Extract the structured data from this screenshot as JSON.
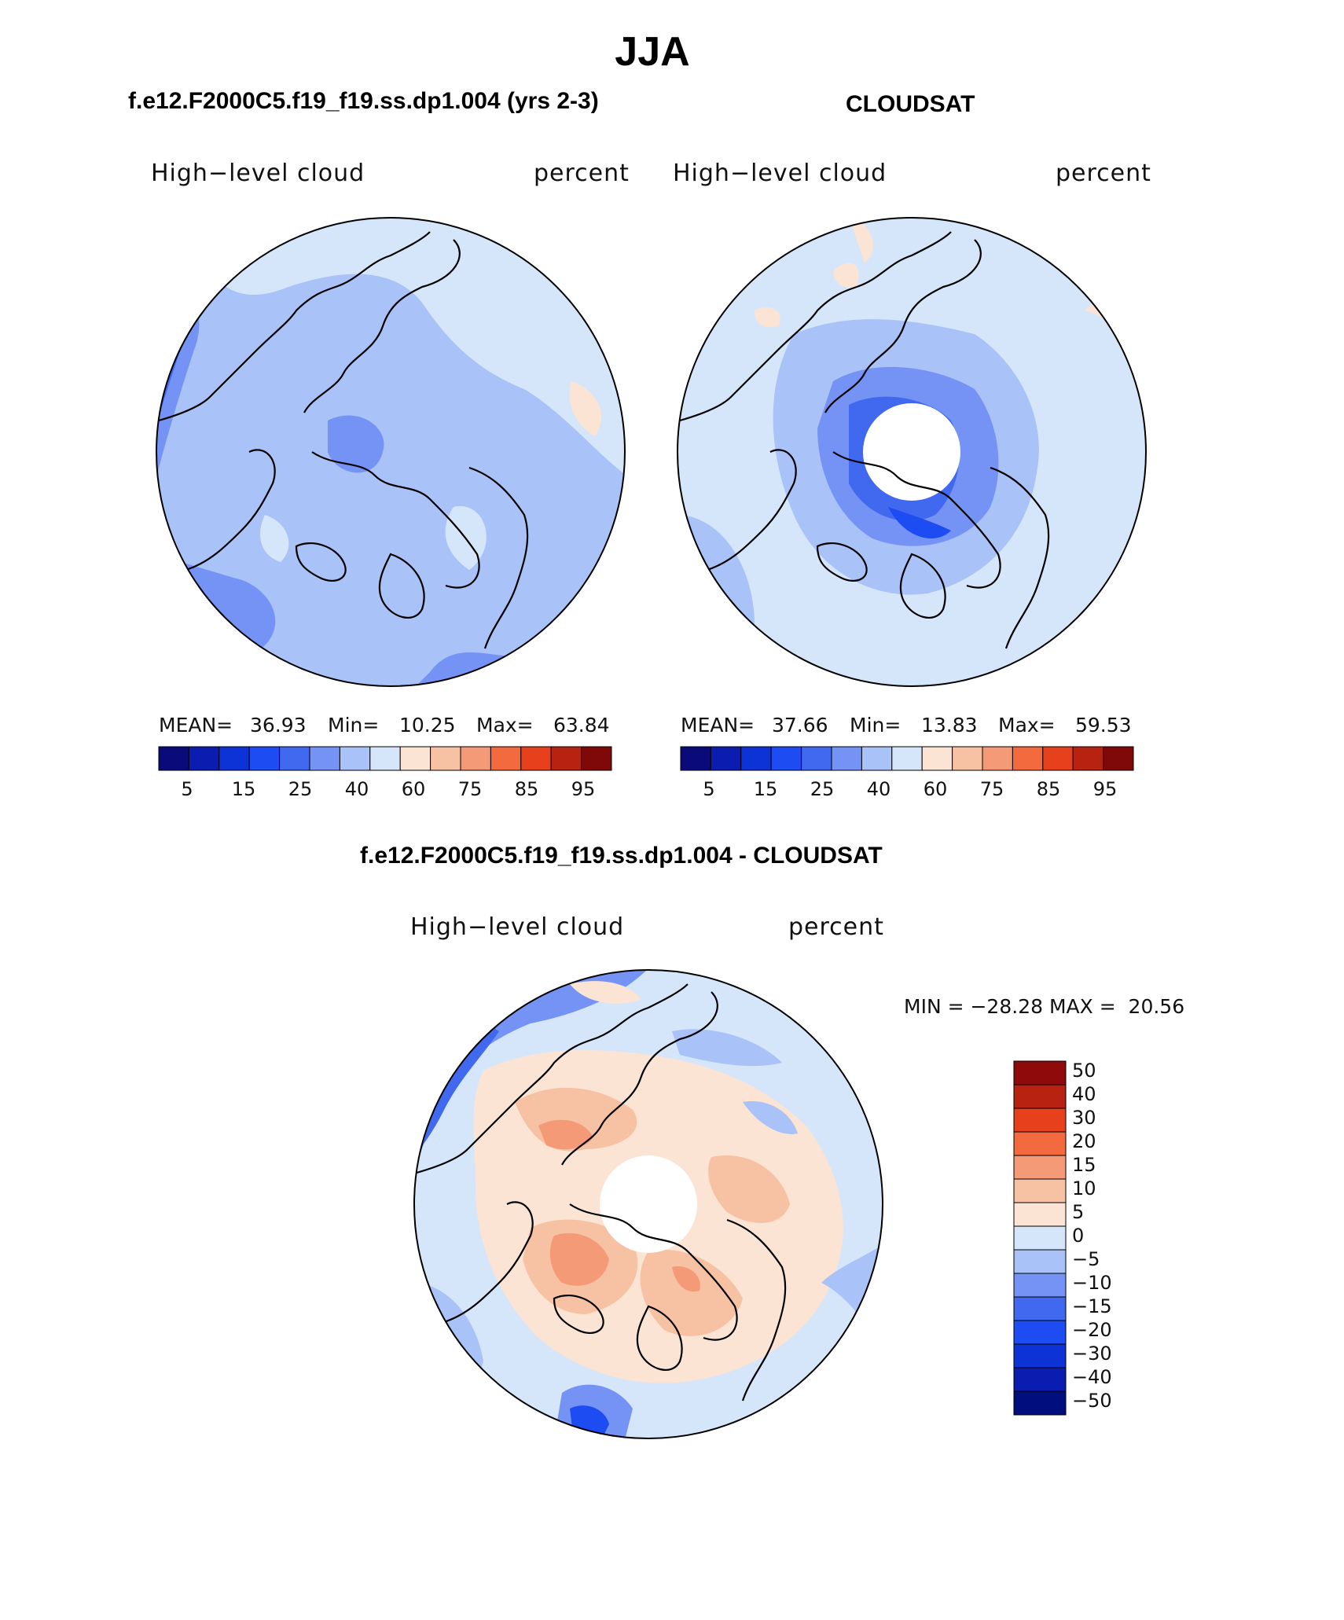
{
  "figure": {
    "title": "JJA",
    "left_header": "f.e12.F2000C5.f19_f19.ss.dp1.004 (yrs 2-3)",
    "right_header": "CLOUDSAT",
    "diff_header": "f.e12.F2000C5.f19_f19.ss.dp1.004 - CLOUDSAT"
  },
  "panels": {
    "model": {
      "variable": "High−level cloud",
      "units": "percent",
      "stats": {
        "mean_label": "MEAN=",
        "mean": "36.93",
        "min_label": "Min=",
        "min": "10.25",
        "max_label": "Max=",
        "max": "63.84"
      }
    },
    "obs": {
      "variable": "High−level cloud",
      "units": "percent",
      "stats": {
        "mean_label": "MEAN=",
        "mean": "37.66",
        "min_label": "Min=",
        "min": "13.83",
        "max_label": "Max=",
        "max": "59.53"
      }
    },
    "diff": {
      "variable": "High−level cloud",
      "units": "percent",
      "minmax": "MIN = −28.28 MAX =  20.56"
    }
  },
  "colorbars": {
    "abs": {
      "colors": [
        "#0a0a7a",
        "#0b1cb0",
        "#0d33d6",
        "#1c4cf2",
        "#4169f0",
        "#7593f5",
        "#a9c2f7",
        "#d5e6fa",
        "#fbe4d3",
        "#f7c1a3",
        "#f49a76",
        "#f36a3e",
        "#e6401c",
        "#b82210",
        "#7f0808"
      ],
      "labels": [
        "5",
        "15",
        "25",
        "40",
        "60",
        "75",
        "85",
        "95"
      ]
    },
    "diff": {
      "colors": [
        "#000e7e",
        "#0b1cb0",
        "#0d33d6",
        "#1c4cf2",
        "#4169f0",
        "#7593f5",
        "#a9c2f7",
        "#d5e6fa",
        "#fbe4d3",
        "#f7c1a3",
        "#f49a76",
        "#f36a3e",
        "#e6401c",
        "#b82210",
        "#8f0a0a"
      ],
      "labels": [
        "−50",
        "−40",
        "−30",
        "−20",
        "−15",
        "−10",
        "−5",
        "0",
        "5",
        "10",
        "15",
        "20",
        "30",
        "40",
        "50"
      ]
    }
  }
}
